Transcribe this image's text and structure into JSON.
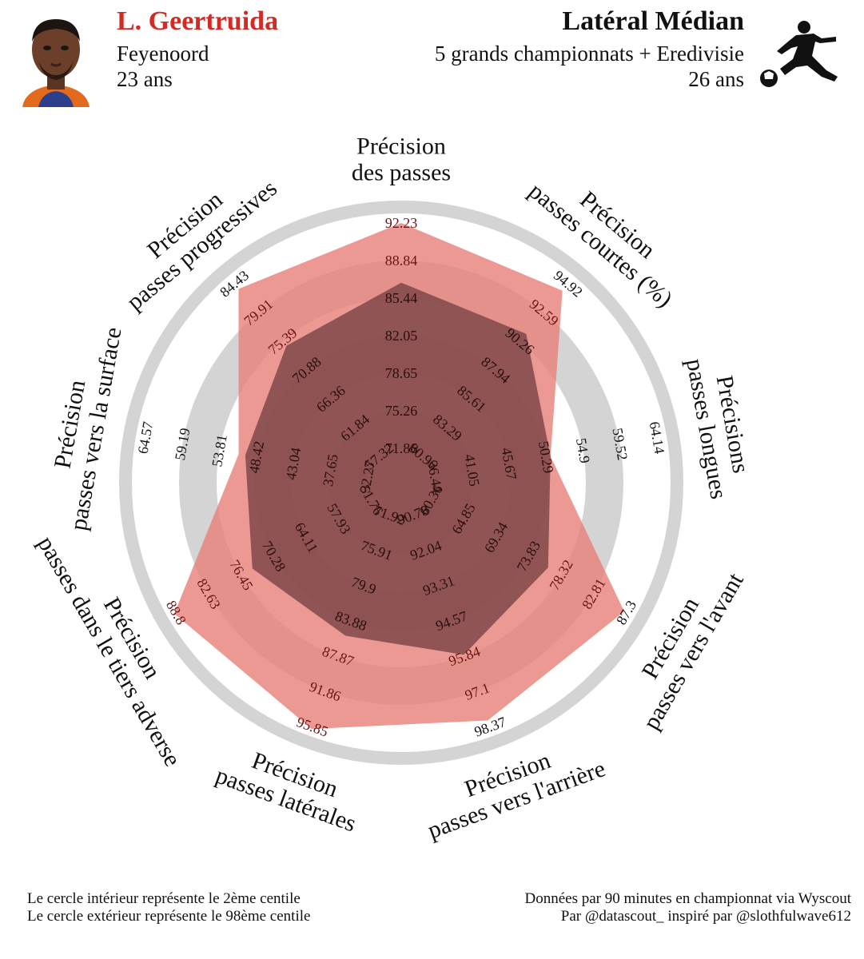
{
  "header": {
    "player_name": "L. Geertruida",
    "player_club": "Feyenoord",
    "player_age": "23 ans",
    "comparison_position": "Latéral Médian",
    "comparison_league": "5 grands championnats + Eredivisie",
    "comparison_age": "26 ans"
  },
  "footer": {
    "left_line1": "Le cercle intérieur représente le 2ème centile",
    "left_line2": "Le cercle extérieur représente le 98ème centile",
    "right_line1": "Données par 90 minutes en championnat via Wyscout",
    "right_line2": "Par @datascout_ inspiré par @slothfulwave612"
  },
  "colors": {
    "player": "#e8837c",
    "average": "#7a4444",
    "outer_ring": "#d4d4d4",
    "title_red": "#d32a23"
  },
  "chart_data": {
    "type": "radar",
    "range_percentile": [
      2,
      98
    ],
    "axes": [
      {
        "label_lines": [
          "Précision",
          "des passes"
        ],
        "ticks": [
          "71.86",
          "75.26",
          "78.65",
          "82.05",
          "85.44",
          "88.84",
          "92.23"
        ],
        "player_pct": 1.0,
        "average_pct": 0.735
      },
      {
        "label_lines": [
          "Précision",
          "passes courtes (%)"
        ],
        "ticks": [
          "80.96",
          "83.29",
          "85.61",
          "87.94",
          "90.26",
          "92.59",
          "94.92"
        ],
        "player_pct": 0.96,
        "average_pct": 0.71
      },
      {
        "label_lines": [
          "Précisions",
          "passes longues"
        ],
        "ticks": [
          "36.44",
          "41.05",
          "45.67",
          "50.29",
          "54.9",
          "59.52",
          "64.14"
        ],
        "player_pct": 0.52,
        "average_pct": 0.52
      },
      {
        "label_lines": [
          "Précision",
          "passes vers l'avant"
        ],
        "ticks": [
          "60.36",
          "64.85",
          "69.34",
          "73.83",
          "78.32",
          "82.81",
          "87.3"
        ],
        "player_pct": 0.99,
        "average_pct": 0.6
      },
      {
        "label_lines": [
          "Précision",
          "passes vers l'arrière"
        ],
        "ticks": [
          "90.78",
          "92.04",
          "93.31",
          "94.57",
          "95.84",
          "97.1",
          "98.37"
        ],
        "player_pct": 0.97,
        "average_pct": 0.66
      },
      {
        "label_lines": [
          "Précision",
          "passes latérales"
        ],
        "ticks": [
          "71.92",
          "75.91",
          "79.9",
          "83.88",
          "87.87",
          "91.86",
          "95.85"
        ],
        "player_pct": 1.01,
        "average_pct": 0.57
      },
      {
        "label_lines": [
          "Précision",
          "passes dans le tiers adverse"
        ],
        "ticks": [
          "51.76",
          "57.93",
          "64.11",
          "70.28",
          "76.45",
          "82.63",
          "88.8"
        ],
        "player_pct": 1.01,
        "average_pct": 0.61
      },
      {
        "label_lines": [
          "Précision",
          "passes vers la surface"
        ],
        "ticks": [
          "32.27",
          "37.65",
          "43.04",
          "48.42",
          "53.81",
          "59.19",
          "64.57"
        ],
        "player_pct": 0.58,
        "average_pct": 0.55
      },
      {
        "label_lines": [
          "Précision",
          "passes progressives"
        ],
        "ticks": [
          "57.32",
          "61.84",
          "66.36",
          "70.88",
          "75.39",
          "79.91",
          "84.43"
        ],
        "player_pct": 0.97,
        "average_pct": 0.64
      }
    ]
  }
}
